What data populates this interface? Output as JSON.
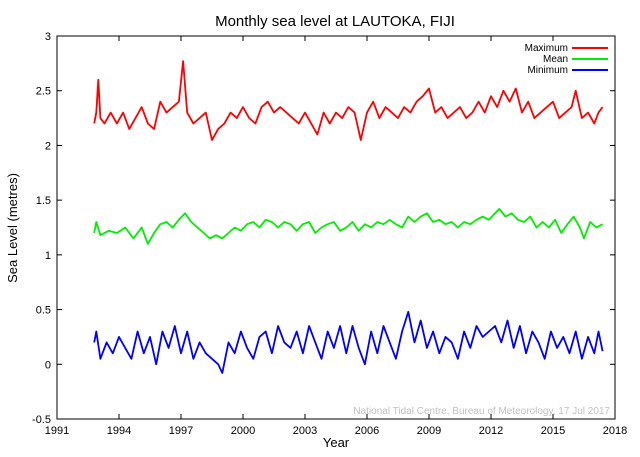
{
  "chart_data": {
    "type": "line",
    "title": "Monthly sea level at LAUTOKA, FIJI",
    "xlabel": "Year",
    "ylabel": "Sea Level (metres)",
    "xlim": [
      1991,
      2018
    ],
    "ylim": [
      -0.5,
      3
    ],
    "x_ticks": [
      1991,
      1994,
      1997,
      2000,
      2003,
      2006,
      2009,
      2012,
      2015,
      2018
    ],
    "x_tick_labels": [
      "1991",
      "1994",
      "1997",
      "2000",
      "2003",
      "2006",
      "2009",
      "2012",
      "2015",
      "2018"
    ],
    "y_ticks": [
      -0.5,
      0,
      0.5,
      1,
      1.5,
      2,
      2.5,
      3
    ],
    "y_tick_labels": [
      "-0.5",
      "0",
      "0.5",
      "1",
      "1.5",
      "2",
      "2.5",
      "3"
    ],
    "grid": false,
    "legend_position": "top-right",
    "credit": "National Tidal Centre, Bureau of Meteorology, 17 Jul 2017",
    "series": [
      {
        "name": "Maximum",
        "color": "#ff0000",
        "points": [
          [
            1992.8,
            2.2
          ],
          [
            1992.9,
            2.3
          ],
          [
            1993.0,
            2.6
          ],
          [
            1993.1,
            2.25
          ],
          [
            1993.3,
            2.2
          ],
          [
            1993.6,
            2.3
          ],
          [
            1993.9,
            2.2
          ],
          [
            1994.2,
            2.3
          ],
          [
            1994.5,
            2.15
          ],
          [
            1994.8,
            2.25
          ],
          [
            1995.1,
            2.35
          ],
          [
            1995.4,
            2.2
          ],
          [
            1995.7,
            2.15
          ],
          [
            1996.0,
            2.4
          ],
          [
            1996.3,
            2.3
          ],
          [
            1996.6,
            2.35
          ],
          [
            1996.9,
            2.4
          ],
          [
            1997.1,
            2.77
          ],
          [
            1997.3,
            2.3
          ],
          [
            1997.6,
            2.2
          ],
          [
            1997.9,
            2.25
          ],
          [
            1998.2,
            2.3
          ],
          [
            1998.5,
            2.05
          ],
          [
            1998.8,
            2.15
          ],
          [
            1999.1,
            2.2
          ],
          [
            1999.4,
            2.3
          ],
          [
            1999.7,
            2.25
          ],
          [
            2000.0,
            2.35
          ],
          [
            2000.3,
            2.25
          ],
          [
            2000.6,
            2.2
          ],
          [
            2000.9,
            2.35
          ],
          [
            2001.2,
            2.4
          ],
          [
            2001.5,
            2.3
          ],
          [
            2001.8,
            2.35
          ],
          [
            2002.1,
            2.3
          ],
          [
            2002.4,
            2.25
          ],
          [
            2002.7,
            2.2
          ],
          [
            2003.0,
            2.3
          ],
          [
            2003.3,
            2.2
          ],
          [
            2003.6,
            2.1
          ],
          [
            2003.9,
            2.3
          ],
          [
            2004.2,
            2.2
          ],
          [
            2004.5,
            2.3
          ],
          [
            2004.8,
            2.25
          ],
          [
            2005.1,
            2.35
          ],
          [
            2005.4,
            2.3
          ],
          [
            2005.7,
            2.05
          ],
          [
            2006.0,
            2.3
          ],
          [
            2006.3,
            2.4
          ],
          [
            2006.6,
            2.25
          ],
          [
            2006.9,
            2.35
          ],
          [
            2007.2,
            2.3
          ],
          [
            2007.5,
            2.25
          ],
          [
            2007.8,
            2.35
          ],
          [
            2008.1,
            2.3
          ],
          [
            2008.4,
            2.4
          ],
          [
            2008.7,
            2.45
          ],
          [
            2009.0,
            2.52
          ],
          [
            2009.3,
            2.3
          ],
          [
            2009.6,
            2.35
          ],
          [
            2009.9,
            2.25
          ],
          [
            2010.2,
            2.3
          ],
          [
            2010.5,
            2.35
          ],
          [
            2010.8,
            2.25
          ],
          [
            2011.1,
            2.3
          ],
          [
            2011.4,
            2.4
          ],
          [
            2011.7,
            2.3
          ],
          [
            2012.0,
            2.45
          ],
          [
            2012.3,
            2.35
          ],
          [
            2012.6,
            2.5
          ],
          [
            2012.9,
            2.4
          ],
          [
            2013.2,
            2.52
          ],
          [
            2013.5,
            2.3
          ],
          [
            2013.8,
            2.4
          ],
          [
            2014.1,
            2.25
          ],
          [
            2014.4,
            2.3
          ],
          [
            2014.7,
            2.35
          ],
          [
            2015.0,
            2.4
          ],
          [
            2015.3,
            2.25
          ],
          [
            2015.6,
            2.3
          ],
          [
            2015.9,
            2.35
          ],
          [
            2016.1,
            2.5
          ],
          [
            2016.4,
            2.25
          ],
          [
            2016.7,
            2.3
          ],
          [
            2017.0,
            2.2
          ],
          [
            2017.2,
            2.3
          ],
          [
            2017.4,
            2.35
          ]
        ]
      },
      {
        "name": "Mean",
        "color": "#00ee00",
        "points": [
          [
            1992.8,
            1.2
          ],
          [
            1992.9,
            1.3
          ],
          [
            1993.1,
            1.18
          ],
          [
            1993.5,
            1.22
          ],
          [
            1993.9,
            1.2
          ],
          [
            1994.3,
            1.25
          ],
          [
            1994.7,
            1.15
          ],
          [
            1995.1,
            1.25
          ],
          [
            1995.4,
            1.1
          ],
          [
            1995.7,
            1.2
          ],
          [
            1996.0,
            1.28
          ],
          [
            1996.3,
            1.3
          ],
          [
            1996.6,
            1.25
          ],
          [
            1996.9,
            1.32
          ],
          [
            1997.2,
            1.38
          ],
          [
            1997.5,
            1.3
          ],
          [
            1997.8,
            1.25
          ],
          [
            1998.1,
            1.2
          ],
          [
            1998.4,
            1.15
          ],
          [
            1998.7,
            1.18
          ],
          [
            1999.0,
            1.15
          ],
          [
            1999.3,
            1.2
          ],
          [
            1999.6,
            1.25
          ],
          [
            1999.9,
            1.22
          ],
          [
            2000.2,
            1.28
          ],
          [
            2000.5,
            1.3
          ],
          [
            2000.8,
            1.25
          ],
          [
            2001.1,
            1.32
          ],
          [
            2001.4,
            1.3
          ],
          [
            2001.7,
            1.25
          ],
          [
            2002.0,
            1.3
          ],
          [
            2002.3,
            1.28
          ],
          [
            2002.6,
            1.22
          ],
          [
            2002.9,
            1.28
          ],
          [
            2003.2,
            1.3
          ],
          [
            2003.5,
            1.2
          ],
          [
            2003.8,
            1.25
          ],
          [
            2004.1,
            1.28
          ],
          [
            2004.4,
            1.3
          ],
          [
            2004.7,
            1.22
          ],
          [
            2005.0,
            1.25
          ],
          [
            2005.3,
            1.3
          ],
          [
            2005.6,
            1.22
          ],
          [
            2005.9,
            1.28
          ],
          [
            2006.2,
            1.25
          ],
          [
            2006.5,
            1.3
          ],
          [
            2006.8,
            1.28
          ],
          [
            2007.1,
            1.32
          ],
          [
            2007.4,
            1.28
          ],
          [
            2007.7,
            1.25
          ],
          [
            2008.0,
            1.35
          ],
          [
            2008.3,
            1.3
          ],
          [
            2008.6,
            1.35
          ],
          [
            2008.9,
            1.38
          ],
          [
            2009.2,
            1.3
          ],
          [
            2009.5,
            1.32
          ],
          [
            2009.8,
            1.28
          ],
          [
            2010.1,
            1.3
          ],
          [
            2010.4,
            1.25
          ],
          [
            2010.7,
            1.3
          ],
          [
            2011.0,
            1.28
          ],
          [
            2011.3,
            1.32
          ],
          [
            2011.6,
            1.35
          ],
          [
            2011.9,
            1.32
          ],
          [
            2012.2,
            1.38
          ],
          [
            2012.4,
            1.42
          ],
          [
            2012.7,
            1.35
          ],
          [
            2013.0,
            1.38
          ],
          [
            2013.3,
            1.32
          ],
          [
            2013.6,
            1.3
          ],
          [
            2013.9,
            1.35
          ],
          [
            2014.2,
            1.25
          ],
          [
            2014.5,
            1.3
          ],
          [
            2014.8,
            1.25
          ],
          [
            2015.1,
            1.32
          ],
          [
            2015.4,
            1.2
          ],
          [
            2015.7,
            1.28
          ],
          [
            2016.0,
            1.35
          ],
          [
            2016.3,
            1.25
          ],
          [
            2016.5,
            1.15
          ],
          [
            2016.8,
            1.3
          ],
          [
            2017.1,
            1.25
          ],
          [
            2017.4,
            1.28
          ]
        ]
      },
      {
        "name": "Minimum",
        "color": "#0000ff",
        "points": [
          [
            1992.8,
            0.2
          ],
          [
            1992.9,
            0.3
          ],
          [
            1993.1,
            0.05
          ],
          [
            1993.4,
            0.2
          ],
          [
            1993.7,
            0.1
          ],
          [
            1994.0,
            0.25
          ],
          [
            1994.3,
            0.15
          ],
          [
            1994.6,
            0.05
          ],
          [
            1994.9,
            0.3
          ],
          [
            1995.2,
            0.1
          ],
          [
            1995.5,
            0.25
          ],
          [
            1995.8,
            0.0
          ],
          [
            1996.1,
            0.3
          ],
          [
            1996.4,
            0.15
          ],
          [
            1996.7,
            0.35
          ],
          [
            1997.0,
            0.1
          ],
          [
            1997.3,
            0.3
          ],
          [
            1997.6,
            0.05
          ],
          [
            1997.9,
            0.2
          ],
          [
            1998.2,
            0.1
          ],
          [
            1998.5,
            0.05
          ],
          [
            1998.8,
            0.0
          ],
          [
            1999.0,
            -0.08
          ],
          [
            1999.3,
            0.2
          ],
          [
            1999.6,
            0.1
          ],
          [
            1999.9,
            0.3
          ],
          [
            2000.2,
            0.15
          ],
          [
            2000.5,
            0.05
          ],
          [
            2000.8,
            0.25
          ],
          [
            2001.1,
            0.3
          ],
          [
            2001.4,
            0.1
          ],
          [
            2001.7,
            0.35
          ],
          [
            2002.0,
            0.2
          ],
          [
            2002.3,
            0.15
          ],
          [
            2002.6,
            0.3
          ],
          [
            2002.9,
            0.1
          ],
          [
            2003.2,
            0.35
          ],
          [
            2003.5,
            0.2
          ],
          [
            2003.8,
            0.05
          ],
          [
            2004.1,
            0.3
          ],
          [
            2004.4,
            0.15
          ],
          [
            2004.7,
            0.35
          ],
          [
            2005.0,
            0.1
          ],
          [
            2005.3,
            0.35
          ],
          [
            2005.6,
            0.15
          ],
          [
            2005.9,
            0.0
          ],
          [
            2006.2,
            0.3
          ],
          [
            2006.5,
            0.1
          ],
          [
            2006.8,
            0.35
          ],
          [
            2007.1,
            0.2
          ],
          [
            2007.4,
            0.05
          ],
          [
            2007.7,
            0.3
          ],
          [
            2008.0,
            0.48
          ],
          [
            2008.3,
            0.2
          ],
          [
            2008.6,
            0.4
          ],
          [
            2008.9,
            0.15
          ],
          [
            2009.2,
            0.3
          ],
          [
            2009.5,
            0.1
          ],
          [
            2009.8,
            0.25
          ],
          [
            2010.1,
            0.2
          ],
          [
            2010.4,
            0.05
          ],
          [
            2010.7,
            0.3
          ],
          [
            2011.0,
            0.15
          ],
          [
            2011.3,
            0.35
          ],
          [
            2011.6,
            0.25
          ],
          [
            2011.9,
            0.3
          ],
          [
            2012.2,
            0.35
          ],
          [
            2012.5,
            0.2
          ],
          [
            2012.8,
            0.4
          ],
          [
            2013.1,
            0.15
          ],
          [
            2013.4,
            0.35
          ],
          [
            2013.7,
            0.1
          ],
          [
            2014.0,
            0.3
          ],
          [
            2014.3,
            0.2
          ],
          [
            2014.6,
            0.05
          ],
          [
            2014.9,
            0.3
          ],
          [
            2015.2,
            0.15
          ],
          [
            2015.5,
            0.25
          ],
          [
            2015.8,
            0.1
          ],
          [
            2016.1,
            0.3
          ],
          [
            2016.4,
            0.05
          ],
          [
            2016.7,
            0.25
          ],
          [
            2017.0,
            0.1
          ],
          [
            2017.2,
            0.3
          ],
          [
            2017.4,
            0.12
          ]
        ]
      }
    ]
  }
}
